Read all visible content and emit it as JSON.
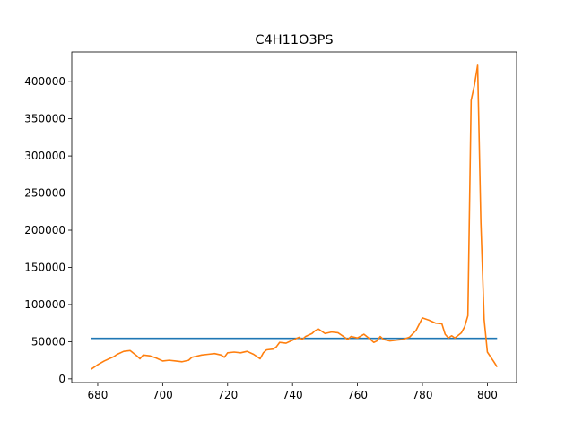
{
  "chart_data": {
    "type": "line",
    "title": "C4H11O3PS",
    "xlabel": "",
    "ylabel": "",
    "xlim": [
      672,
      809
    ],
    "ylim": [
      -5000,
      440000
    ],
    "xticks": [
      680,
      700,
      720,
      740,
      760,
      780,
      800
    ],
    "yticks": [
      0,
      50000,
      100000,
      150000,
      200000,
      250000,
      300000,
      350000,
      400000
    ],
    "grid": false,
    "series": [
      {
        "color": "#1f77b4",
        "x": [
          678,
          803
        ],
        "y": [
          54500,
          54500
        ]
      },
      {
        "color": "#ff7f0e",
        "x": [
          678,
          680,
          682,
          684,
          685,
          686,
          688,
          690,
          692,
          693,
          694,
          696,
          698,
          700,
          702,
          704,
          706,
          708,
          709,
          710,
          712,
          714,
          716,
          718,
          719,
          720,
          722,
          724,
          726,
          728,
          730,
          731,
          732,
          734,
          735,
          736,
          738,
          740,
          742,
          743,
          744,
          746,
          747,
          748,
          750,
          752,
          754,
          756,
          757,
          758,
          760,
          762,
          764,
          765,
          766,
          767,
          768,
          770,
          772,
          774,
          776,
          778,
          780,
          782,
          784,
          786,
          787,
          788,
          789,
          790,
          792,
          793,
          794,
          795,
          796,
          797,
          798,
          799,
          800,
          802,
          803
        ],
        "y": [
          13000,
          19000,
          24000,
          28000,
          30000,
          33000,
          37000,
          38000,
          31000,
          27000,
          32000,
          31000,
          28000,
          24000,
          25000,
          24000,
          23000,
          25000,
          29000,
          30000,
          32000,
          33000,
          34000,
          32000,
          29000,
          35000,
          36000,
          35000,
          37000,
          33000,
          27000,
          35000,
          39000,
          40000,
          43000,
          49000,
          48000,
          52000,
          56000,
          53000,
          57000,
          61000,
          65000,
          67000,
          61000,
          63000,
          62000,
          56000,
          53000,
          57000,
          55000,
          60000,
          53000,
          49000,
          51000,
          57000,
          53000,
          51000,
          52000,
          53000,
          56000,
          65000,
          82000,
          79000,
          75000,
          74000,
          60000,
          55000,
          58000,
          55000,
          62000,
          70000,
          85000,
          375000,
          395000,
          422000,
          210000,
          80000,
          36000,
          23000,
          16000
        ]
      }
    ]
  }
}
